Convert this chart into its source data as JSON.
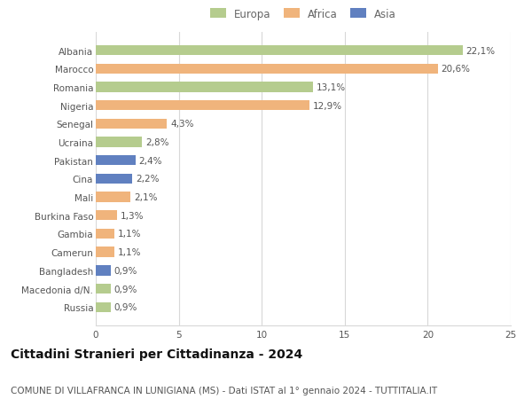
{
  "categories": [
    "Albania",
    "Marocco",
    "Romania",
    "Nigeria",
    "Senegal",
    "Ucraina",
    "Pakistan",
    "Cina",
    "Mali",
    "Burkina Faso",
    "Gambia",
    "Camerun",
    "Bangladesh",
    "Macedonia d/N.",
    "Russia"
  ],
  "values": [
    22.1,
    20.6,
    13.1,
    12.9,
    4.3,
    2.8,
    2.4,
    2.2,
    2.1,
    1.3,
    1.1,
    1.1,
    0.9,
    0.9,
    0.9
  ],
  "labels": [
    "22,1%",
    "20,6%",
    "13,1%",
    "12,9%",
    "4,3%",
    "2,8%",
    "2,4%",
    "2,2%",
    "2,1%",
    "1,3%",
    "1,1%",
    "1,1%",
    "0,9%",
    "0,9%",
    "0,9%"
  ],
  "continents": [
    "Europa",
    "Africa",
    "Europa",
    "Africa",
    "Africa",
    "Europa",
    "Asia",
    "Asia",
    "Africa",
    "Africa",
    "Africa",
    "Africa",
    "Asia",
    "Europa",
    "Europa"
  ],
  "colors": {
    "Europa": "#b5cc8e",
    "Africa": "#f0b47c",
    "Asia": "#6080c0"
  },
  "xlim": [
    0,
    25
  ],
  "xticks": [
    0,
    5,
    10,
    15,
    20,
    25
  ],
  "title": "Cittadini Stranieri per Cittadinanza - 2024",
  "subtitle": "COMUNE DI VILLAFRANCA IN LUNIGIANA (MS) - Dati ISTAT al 1° gennaio 2024 - TUTTITALIA.IT",
  "background_color": "#ffffff",
  "grid_color": "#d8d8d8",
  "bar_height": 0.55,
  "title_fontsize": 10,
  "subtitle_fontsize": 7.5,
  "label_fontsize": 7.5,
  "tick_fontsize": 7.5,
  "legend_fontsize": 8.5
}
